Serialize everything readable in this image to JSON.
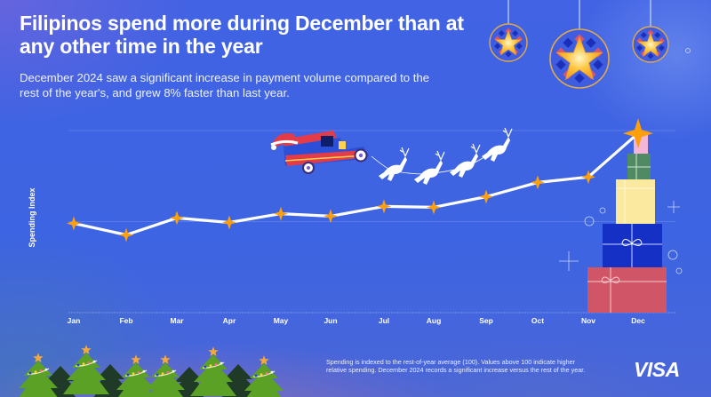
{
  "header": {
    "title": "Filipinos spend more during December than at any other time in the year",
    "subtitle": "December 2024 saw a significant increase in payment volume compared to the rest of the year's, and grew 8% faster than last year."
  },
  "footer": {
    "footnote": "Spending is indexed to the rest-of-year average (100). Values above 100 indicate higher relative spending. December 2024 records a significant increase versus the rest of the year.",
    "brand": "VISA"
  },
  "colors": {
    "background": "#3d64e2",
    "line": "#ffffff",
    "marker": "#ff9f0a",
    "gift_red": "#d05566",
    "gift_blue": "#1530c4",
    "gift_yellow": "#fbe9a0",
    "gift_green": "#4f8a63",
    "gift_pink": "#f4b6d6",
    "tree_green": "#5aa125",
    "tree_dark": "#1f3a27"
  },
  "decorations": {
    "lanterns": [
      "parol-lantern-small-left",
      "parol-lantern-large",
      "parol-lantern-small-right"
    ],
    "sleigh": "jeepney-with-santa-hat",
    "reindeer_count": 4,
    "gift_stack": [
      "pink",
      "green",
      "yellow",
      "blue",
      "red"
    ],
    "trees": "christmas-tree-row"
  },
  "chart_data": {
    "type": "line",
    "title": "Filipinos spend more during December than at any other time in the year",
    "subtitle": "December 2024 saw a significant increase in payment volume compared to the rest of the year's, and grew 8% faster than last year.",
    "xlabel": "",
    "ylabel": "Spending Index",
    "categories": [
      "Jan",
      "Feb",
      "Mar",
      "Apr",
      "May",
      "Jun",
      "Jul",
      "Aug",
      "Sep",
      "Oct",
      "Nov",
      "Dec"
    ],
    "series": [
      {
        "name": "Spending Index 2024",
        "values": [
          99.4,
          95.6,
          101.2,
          99.7,
          102.6,
          101.8,
          105.0,
          104.7,
          108.2,
          112.9,
          114.7,
          129.1
        ]
      }
    ],
    "ylim": [
      70,
      130
    ],
    "baseline": 100,
    "grid": true,
    "gridlines": [
      100,
      130
    ],
    "legend": "none",
    "marker": "four-point-star"
  }
}
